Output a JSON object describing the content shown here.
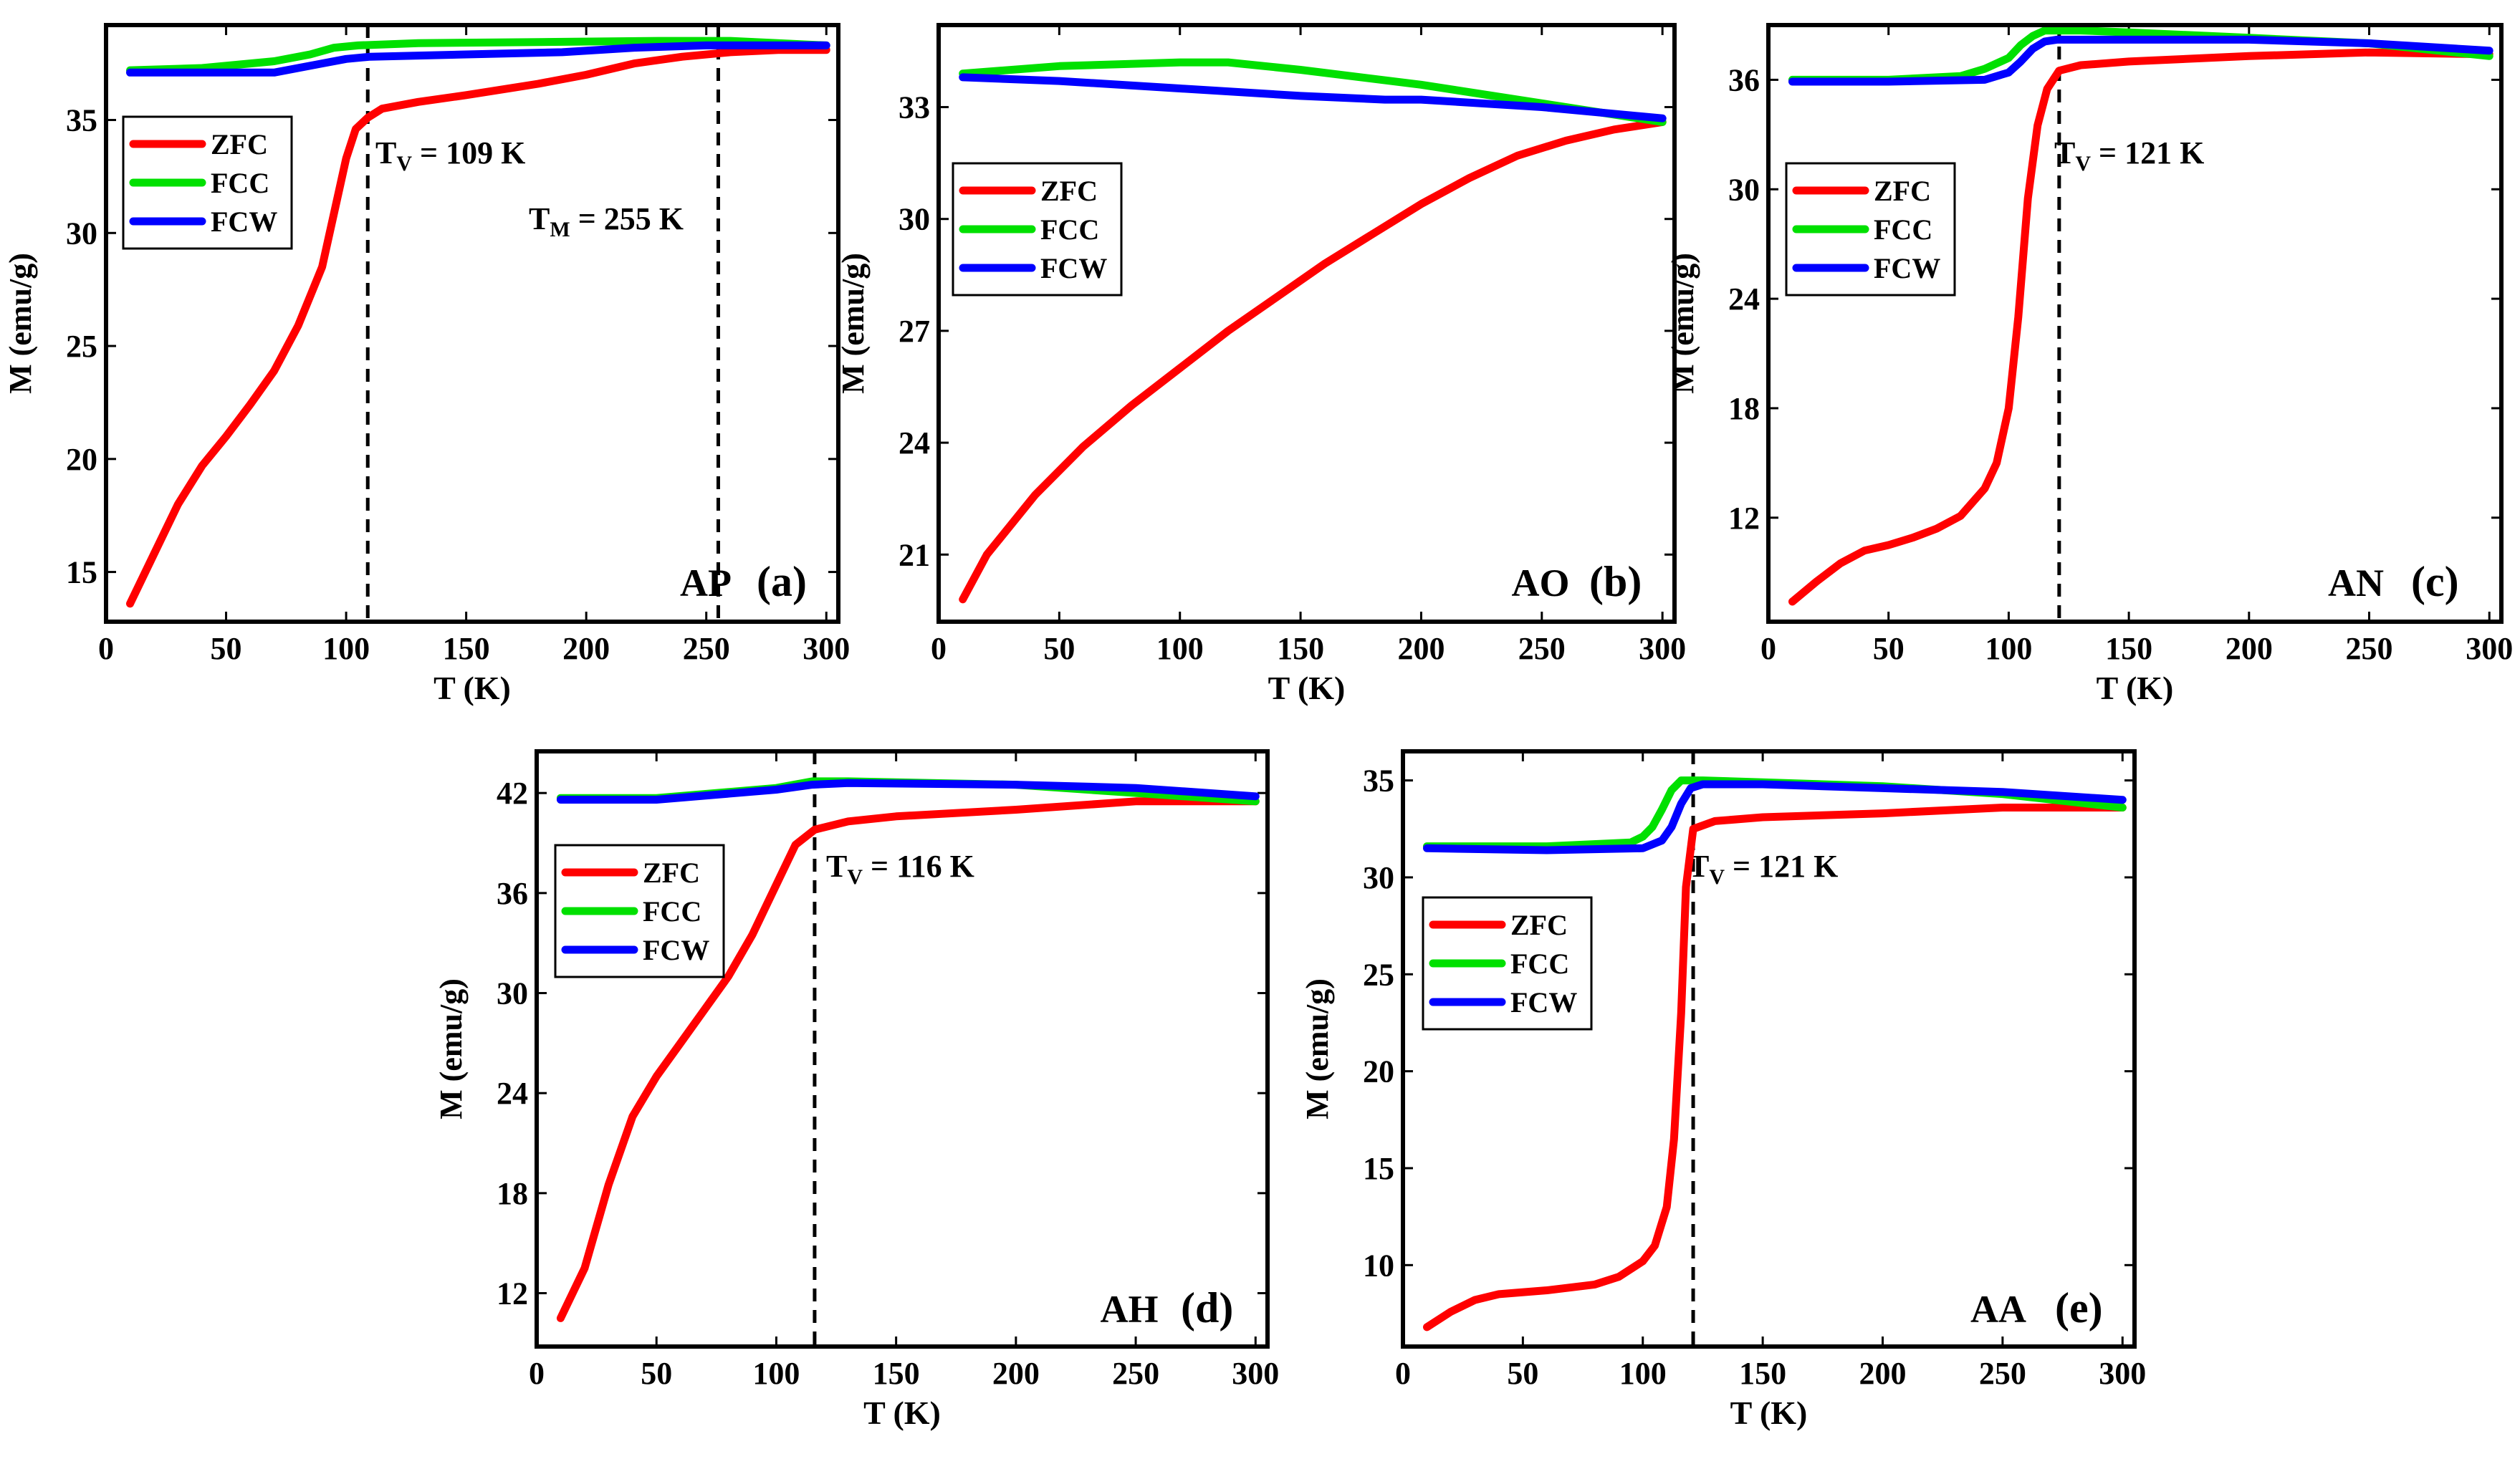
{
  "figure": {
    "panels": [
      {
        "id": "a",
        "chart_data": {
          "type": "line",
          "xlabel": "T (K)",
          "ylabel": "M (emu/g)",
          "xlim": [
            0,
            305
          ],
          "ylim": [
            12.8,
            39.2
          ],
          "xticks": [
            0,
            50,
            100,
            150,
            200,
            250,
            300
          ],
          "yticks": [
            15,
            20,
            25,
            30,
            35
          ],
          "sample_label": "AP",
          "panel_label": "(a)",
          "legend": [
            "ZFC",
            "FCC",
            "FCW"
          ],
          "transitions": [
            {
              "x": 109,
              "label_main": "T",
              "label_sub": "V",
              "label_rest": " = 109 K"
            },
            {
              "x": 255,
              "label_main": "T",
              "label_sub": "M",
              "label_rest": " = 255 K"
            }
          ],
          "series": [
            {
              "name": "ZFC",
              "color": "#ff0000",
              "x": [
                10,
                20,
                30,
                40,
                50,
                60,
                70,
                80,
                90,
                100,
                104,
                109,
                115,
                130,
                150,
                180,
                200,
                220,
                240,
                260,
                280,
                300
              ],
              "y": [
                13.6,
                15.8,
                18.0,
                19.7,
                21.0,
                22.4,
                23.9,
                25.9,
                28.5,
                33.3,
                34.6,
                35.1,
                35.5,
                35.8,
                36.1,
                36.6,
                37.0,
                37.5,
                37.8,
                38.0,
                38.1,
                38.1
              ]
            },
            {
              "name": "FCC",
              "color": "#00e000",
              "x": [
                10,
                40,
                70,
                85,
                95,
                105,
                130,
                180,
                230,
                260,
                300
              ],
              "y": [
                37.2,
                37.3,
                37.6,
                37.9,
                38.2,
                38.3,
                38.4,
                38.45,
                38.5,
                38.5,
                38.3
              ]
            },
            {
              "name": "FCW",
              "color": "#0000ff",
              "x": [
                10,
                40,
                70,
                90,
                100,
                110,
                150,
                190,
                220,
                250,
                280,
                300
              ],
              "y": [
                37.1,
                37.1,
                37.1,
                37.5,
                37.7,
                37.8,
                37.9,
                38.0,
                38.2,
                38.3,
                38.3,
                38.3
              ]
            }
          ]
        }
      },
      {
        "id": "b",
        "chart_data": {
          "type": "line",
          "xlabel": "T (K)",
          "ylabel": "M (emu/g)",
          "xlim": [
            0,
            305
          ],
          "ylim": [
            19.2,
            35.2
          ],
          "xticks": [
            0,
            50,
            100,
            150,
            200,
            250,
            300
          ],
          "yticks": [
            21,
            24,
            27,
            30,
            33
          ],
          "sample_label": "AO",
          "panel_label": "(b)",
          "legend": [
            "ZFC",
            "FCC",
            "FCW"
          ],
          "transitions": [],
          "series": [
            {
              "name": "ZFC",
              "color": "#ff0000",
              "x": [
                10,
                20,
                40,
                60,
                80,
                100,
                120,
                140,
                160,
                180,
                200,
                220,
                240,
                260,
                280,
                300
              ],
              "y": [
                19.8,
                21.0,
                22.6,
                23.9,
                25.0,
                26.0,
                27.0,
                27.9,
                28.8,
                29.6,
                30.4,
                31.1,
                31.7,
                32.1,
                32.4,
                32.6
              ]
            },
            {
              "name": "FCC",
              "color": "#00e000",
              "x": [
                10,
                50,
                100,
                120,
                150,
                200,
                250,
                300
              ],
              "y": [
                33.9,
                34.1,
                34.2,
                34.2,
                34.0,
                33.6,
                33.1,
                32.6
              ]
            },
            {
              "name": "FCW",
              "color": "#0000ff",
              "x": [
                10,
                50,
                100,
                150,
                185,
                200,
                250,
                300
              ],
              "y": [
                33.8,
                33.7,
                33.5,
                33.3,
                33.2,
                33.2,
                33.0,
                32.7
              ]
            }
          ]
        }
      },
      {
        "id": "c",
        "chart_data": {
          "type": "line",
          "xlabel": "T (K)",
          "ylabel": "M (emu/g)",
          "xlim": [
            0,
            305
          ],
          "ylim": [
            6.3,
            39.0
          ],
          "xticks": [
            0,
            50,
            100,
            150,
            200,
            250,
            300
          ],
          "yticks": [
            12,
            18,
            24,
            30,
            36
          ],
          "sample_label": "AN",
          "panel_label": "(c)",
          "legend": [
            "ZFC",
            "FCC",
            "FCW"
          ],
          "transitions": [
            {
              "x": 121,
              "label_main": "T",
              "label_sub": "V",
              "label_rest": " = 121 K"
            }
          ],
          "series": [
            {
              "name": "ZFC",
              "color": "#ff0000",
              "x": [
                10,
                20,
                30,
                40,
                50,
                60,
                70,
                80,
                90,
                95,
                100,
                104,
                108,
                112,
                116,
                121,
                130,
                150,
                200,
                250,
                300
              ],
              "y": [
                7.4,
                8.5,
                9.5,
                10.2,
                10.5,
                10.9,
                11.4,
                12.1,
                13.6,
                15.0,
                18.0,
                23.0,
                29.5,
                33.5,
                35.5,
                36.5,
                36.8,
                37.0,
                37.3,
                37.5,
                37.4
              ]
            },
            {
              "name": "FCC",
              "color": "#00e000",
              "x": [
                10,
                50,
                80,
                90,
                100,
                105,
                110,
                115,
                120,
                130,
                150,
                200,
                250,
                300
              ],
              "y": [
                36.0,
                36.0,
                36.2,
                36.6,
                37.2,
                37.9,
                38.4,
                38.7,
                38.7,
                38.7,
                38.6,
                38.3,
                38.0,
                37.3
              ]
            },
            {
              "name": "FCW",
              "color": "#0000ff",
              "x": [
                10,
                50,
                90,
                100,
                105,
                110,
                115,
                120,
                130,
                200,
                250,
                300
              ],
              "y": [
                35.9,
                35.9,
                36.0,
                36.4,
                37.0,
                37.7,
                38.1,
                38.2,
                38.2,
                38.2,
                38.0,
                37.6
              ]
            }
          ]
        }
      },
      {
        "id": "d",
        "chart_data": {
          "type": "line",
          "xlabel": "T (K)",
          "ylabel": "M (emu/g)",
          "xlim": [
            0,
            305
          ],
          "ylim": [
            8.8,
            44.5
          ],
          "xticks": [
            0,
            50,
            100,
            150,
            200,
            250,
            300
          ],
          "yticks": [
            12,
            18,
            24,
            30,
            36,
            42
          ],
          "sample_label": "AH",
          "panel_label": "(d)",
          "legend": [
            "ZFC",
            "FCC",
            "FCW"
          ],
          "transitions": [
            {
              "x": 116,
              "label_main": "T",
              "label_sub": "V",
              "label_rest": " = 116 K"
            }
          ],
          "series": [
            {
              "name": "ZFC",
              "color": "#ff0000",
              "x": [
                10,
                20,
                30,
                40,
                50,
                60,
                70,
                80,
                90,
                100,
                108,
                116,
                130,
                150,
                200,
                250,
                300
              ],
              "y": [
                10.5,
                13.5,
                18.5,
                22.6,
                25.0,
                27.0,
                29.0,
                31.0,
                33.5,
                36.5,
                38.9,
                39.8,
                40.3,
                40.6,
                41.0,
                41.5,
                41.5
              ]
            },
            {
              "name": "FCC",
              "color": "#00e000",
              "x": [
                10,
                50,
                100,
                115,
                130,
                200,
                250,
                300
              ],
              "y": [
                41.7,
                41.7,
                42.3,
                42.7,
                42.7,
                42.5,
                42.0,
                41.5
              ]
            },
            {
              "name": "FCW",
              "color": "#0000ff",
              "x": [
                10,
                50,
                100,
                115,
                130,
                200,
                250,
                300
              ],
              "y": [
                41.6,
                41.6,
                42.2,
                42.5,
                42.6,
                42.5,
                42.3,
                41.8
              ]
            }
          ]
        }
      },
      {
        "id": "e",
        "chart_data": {
          "type": "line",
          "xlabel": "T (K)",
          "ylabel": "M (emu/g)",
          "xlim": [
            0,
            305
          ],
          "ylim": [
            5.8,
            36.5
          ],
          "xticks": [
            0,
            50,
            100,
            150,
            200,
            250,
            300
          ],
          "yticks": [
            10,
            15,
            20,
            25,
            30,
            35
          ],
          "sample_label": "AA",
          "panel_label": "(e)",
          "legend": [
            "ZFC",
            "FCC",
            "FCW"
          ],
          "transitions": [
            {
              "x": 121,
              "label_main": "T",
              "label_sub": "V",
              "label_rest": " = 121 K"
            }
          ],
          "series": [
            {
              "name": "ZFC",
              "color": "#ff0000",
              "x": [
                10,
                20,
                30,
                40,
                60,
                80,
                90,
                100,
                105,
                110,
                113,
                116,
                118,
                121,
                130,
                150,
                200,
                250,
                300
              ],
              "y": [
                6.8,
                7.6,
                8.2,
                8.5,
                8.7,
                9.0,
                9.4,
                10.2,
                11.0,
                13.0,
                16.5,
                23.0,
                29.5,
                32.5,
                32.9,
                33.1,
                33.3,
                33.6,
                33.6
              ]
            },
            {
              "name": "FCC",
              "color": "#00e000",
              "x": [
                10,
                60,
                95,
                100,
                104,
                108,
                112,
                116,
                125,
                150,
                200,
                250,
                300
              ],
              "y": [
                31.6,
                31.6,
                31.8,
                32.1,
                32.6,
                33.5,
                34.5,
                35.0,
                35.0,
                34.9,
                34.7,
                34.3,
                33.6
              ]
            },
            {
              "name": "FCW",
              "color": "#0000ff",
              "x": [
                10,
                60,
                100,
                108,
                112,
                116,
                120,
                125,
                150,
                200,
                250,
                300
              ],
              "y": [
                31.5,
                31.4,
                31.5,
                31.9,
                32.6,
                33.8,
                34.6,
                34.8,
                34.8,
                34.6,
                34.4,
                34.0
              ]
            }
          ]
        }
      }
    ]
  }
}
